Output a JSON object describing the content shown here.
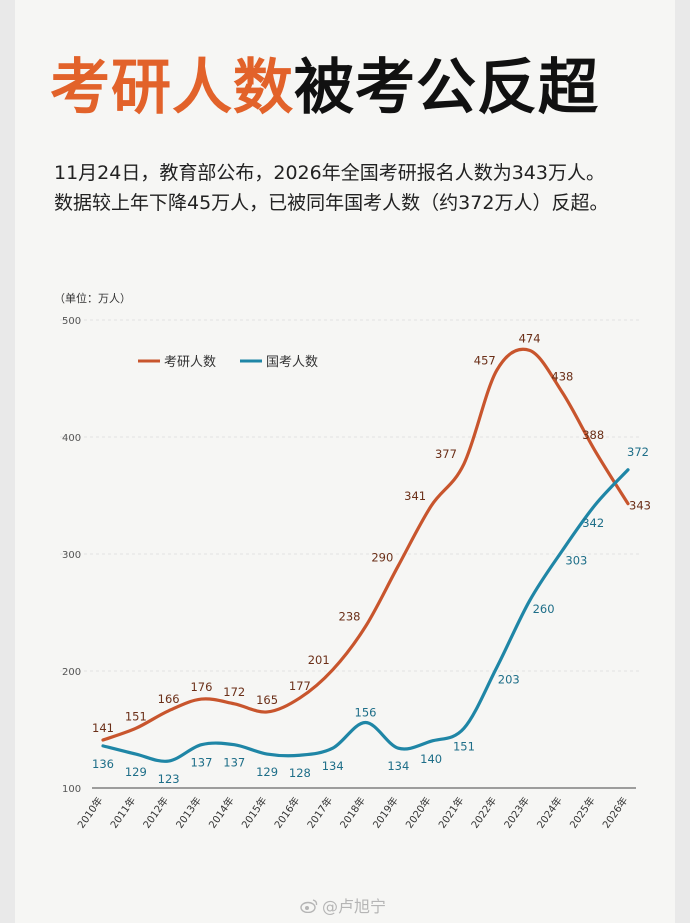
{
  "title_part1": "考研人数",
  "title_part2": "被考公反超",
  "subtitle_line1": "11月24日，教育部公布，2026年全国考研报名人数为343万人。",
  "subtitle_line2": "数据较上年下降45万人，已被同年国考人数（约372万人）反超。",
  "watermark": "@卢旭宁",
  "colors": {
    "kaoyan": "#c8552d",
    "guokao": "#1f86a6",
    "title_accent": "#e2622a"
  },
  "chart_data": {
    "type": "line",
    "unit_label": "（单位：万人）",
    "categories": [
      "2010年",
      "2011年",
      "2012年",
      "2013年",
      "2014年",
      "2015年",
      "2016年",
      "2017年",
      "2018年",
      "2019年",
      "2020年",
      "2021年",
      "2022年",
      "2023年",
      "2024年",
      "2025年",
      "2026年"
    ],
    "series": [
      {
        "name": "考研人数",
        "color": "#c8552d",
        "values": [
          141,
          151,
          166,
          176,
          172,
          165,
          177,
          201,
          238,
          290,
          341,
          377,
          457,
          474,
          438,
          388,
          343
        ]
      },
      {
        "name": "国考人数",
        "color": "#1f86a6",
        "values": [
          136,
          129,
          123,
          137,
          137,
          129,
          128,
          134,
          156,
          134,
          140,
          151,
          203,
          260,
          303,
          342,
          372
        ]
      }
    ],
    "yticks": [
      "100",
      "200",
      "300",
      "400",
      "500"
    ],
    "ylim": [
      100,
      500
    ],
    "legend_position": "top-left",
    "grid": false
  }
}
